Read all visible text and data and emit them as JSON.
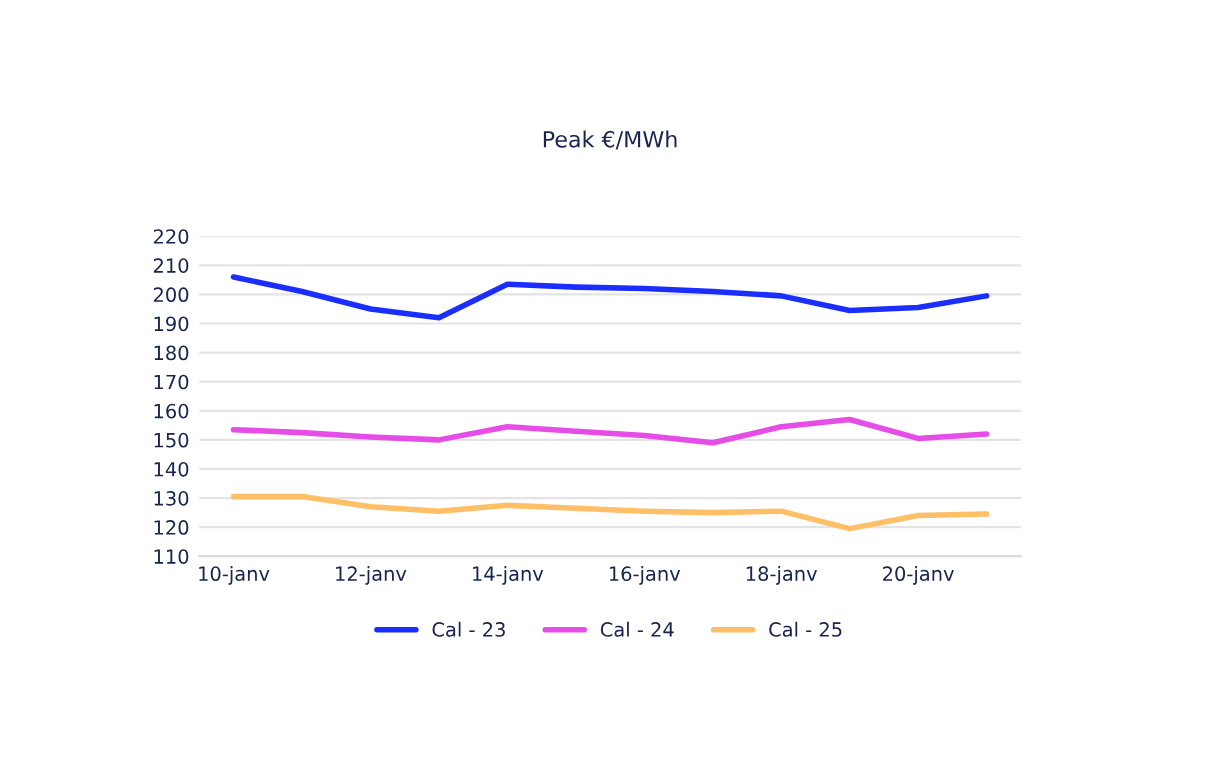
{
  "chart_data": {
    "type": "line",
    "title": "Peak €/MWh",
    "categories": [
      "10-janv",
      null,
      "12-janv",
      null,
      "14-janv",
      null,
      "16-janv",
      null,
      "18-janv",
      null,
      "20-janv",
      null
    ],
    "series": [
      {
        "name": "Cal - 23",
        "color": "#1a2eff",
        "values": [
          206,
          201,
          195,
          192,
          203.5,
          202.5,
          202,
          201,
          199.5,
          194.5,
          195.5,
          199.5
        ]
      },
      {
        "name": "Cal - 24",
        "color": "#e64ce6",
        "values": [
          153.5,
          152.5,
          151,
          150,
          154.5,
          153,
          151.5,
          149,
          154.5,
          157,
          150.5,
          152
        ]
      },
      {
        "name": "Cal - 25",
        "color": "#ffbf66",
        "values": [
          130.5,
          130.5,
          127,
          125.5,
          127.5,
          126.5,
          125.5,
          125,
          125.5,
          119.5,
          124,
          124.5
        ]
      }
    ],
    "ylim": [
      110,
      220
    ],
    "yticks": [
      110,
      120,
      130,
      140,
      150,
      160,
      170,
      180,
      190,
      200,
      210,
      220
    ],
    "grid": "y",
    "legend": "bottom",
    "marker": "none",
    "line_style": "solid"
  }
}
